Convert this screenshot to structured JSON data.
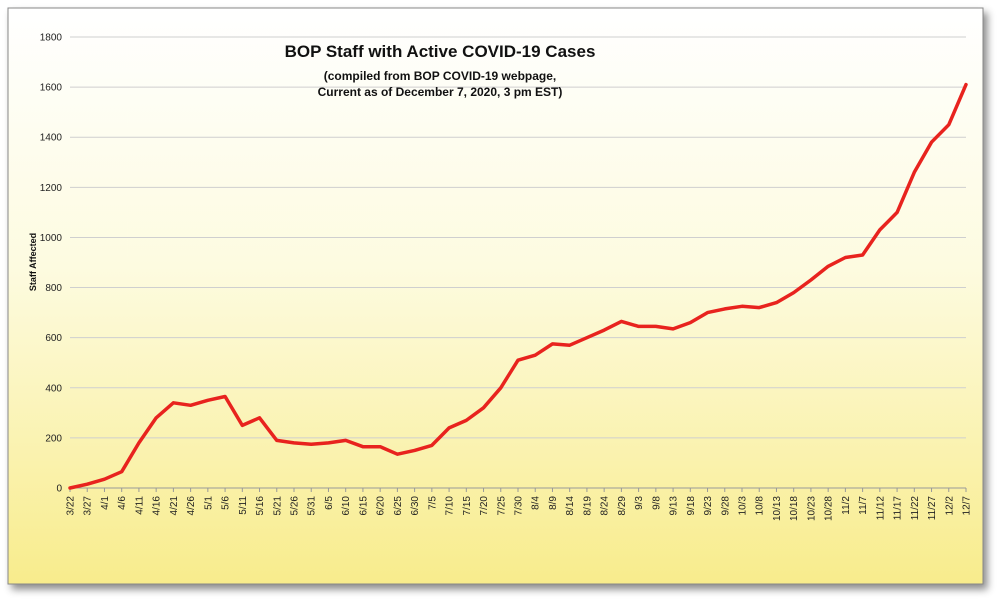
{
  "chart_data": {
    "type": "line",
    "title": "BOP Staff with Active COVID-19 Cases",
    "subtitle": [
      "(compiled from BOP COVID-19 webpage,",
      "Current as of December 7, 2020, 3 pm EST)"
    ],
    "y_label": "Staff Affected",
    "categories": [
      "3/22",
      "3/27",
      "4/1",
      "4/6",
      "4/11",
      "4/16",
      "4/21",
      "4/26",
      "5/1",
      "5/6",
      "5/11",
      "5/16",
      "5/21",
      "5/26",
      "5/31",
      "6/5",
      "6/10",
      "6/15",
      "6/20",
      "6/25",
      "6/30",
      "7/5",
      "7/10",
      "7/15",
      "7/20",
      "7/25",
      "7/30",
      "8/4",
      "8/9",
      "8/14",
      "8/19",
      "8/24",
      "8/29",
      "9/3",
      "9/8",
      "9/13",
      "9/18",
      "9/23",
      "9/28",
      "10/3",
      "10/8",
      "10/13",
      "10/18",
      "10/23",
      "10/28",
      "11/2",
      "11/7",
      "11/12",
      "11/17",
      "11/22",
      "11/27",
      "12/2",
      "12/7"
    ],
    "series": [
      {
        "name": "Staff Affected",
        "color": "#e8231e",
        "values": [
          0,
          15,
          35,
          65,
          180,
          280,
          340,
          330,
          350,
          365,
          250,
          280,
          190,
          180,
          175,
          180,
          190,
          165,
          165,
          135,
          150,
          170,
          240,
          270,
          320,
          400,
          510,
          530,
          575,
          570,
          600,
          630,
          665,
          645,
          645,
          635,
          660,
          700,
          715,
          725,
          720,
          740,
          780,
          830,
          885,
          920,
          930,
          1030,
          1100,
          1260,
          1380,
          1450,
          1610
        ]
      }
    ],
    "ylim": [
      0,
      1800
    ],
    "yticks": [
      0,
      200,
      400,
      600,
      800,
      1000,
      1200,
      1400,
      1600,
      1800
    ],
    "grid": true,
    "legend": false
  }
}
